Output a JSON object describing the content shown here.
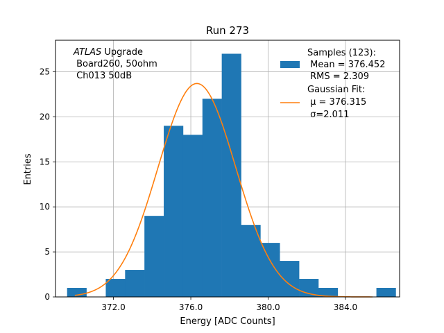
{
  "chart_data": {
    "type": "bar",
    "title": "Run 273",
    "xlabel": "Energy [ADC Counts]",
    "ylabel": "Entries",
    "xlim": [
      369.0,
      386.8
    ],
    "ylim": [
      0,
      28.5
    ],
    "xticks": [
      372.0,
      376.0,
      380.0,
      384.0
    ],
    "xtick_labels": [
      "372.0",
      "376.0",
      "380.0",
      "384.0"
    ],
    "yticks": [
      0,
      5,
      10,
      15,
      20,
      25
    ],
    "ytick_labels": [
      "0",
      "5",
      "10",
      "15",
      "20",
      "25"
    ],
    "grid": true,
    "legend_position": "top-right",
    "bin_width": 1.0,
    "bins": [
      {
        "x0": 369.6,
        "count": 1
      },
      {
        "x0": 371.6,
        "count": 2
      },
      {
        "x0": 372.6,
        "count": 3
      },
      {
        "x0": 373.6,
        "count": 9
      },
      {
        "x0": 374.6,
        "count": 19
      },
      {
        "x0": 375.6,
        "count": 18
      },
      {
        "x0": 376.6,
        "count": 22
      },
      {
        "x0": 377.6,
        "count": 27
      },
      {
        "x0": 378.6,
        "count": 8
      },
      {
        "x0": 379.6,
        "count": 6
      },
      {
        "x0": 380.6,
        "count": 4
      },
      {
        "x0": 381.6,
        "count": 2
      },
      {
        "x0": 382.6,
        "count": 1
      },
      {
        "x0": 385.6,
        "count": 1
      }
    ],
    "fit": {
      "mu": 376.315,
      "sigma": 2.011,
      "amplitude": 23.7,
      "x_range": [
        370.0,
        385.4
      ]
    },
    "series": [
      {
        "type": "histogram",
        "color": "#1f77b4"
      },
      {
        "type": "line",
        "color": "#ff7f0e"
      }
    ],
    "legend": {
      "samples_lines": [
        "Samples (123):",
        " Mean = 376.452",
        " RMS = 2.309"
      ],
      "fit_lines": [
        "Gaussian Fit:",
        " μ = 376.315",
        " σ=2.011"
      ]
    },
    "annotation_lines": [
      "ATLAS Upgrade",
      " Board260, 50ohm",
      " Ch013 50dB"
    ]
  }
}
